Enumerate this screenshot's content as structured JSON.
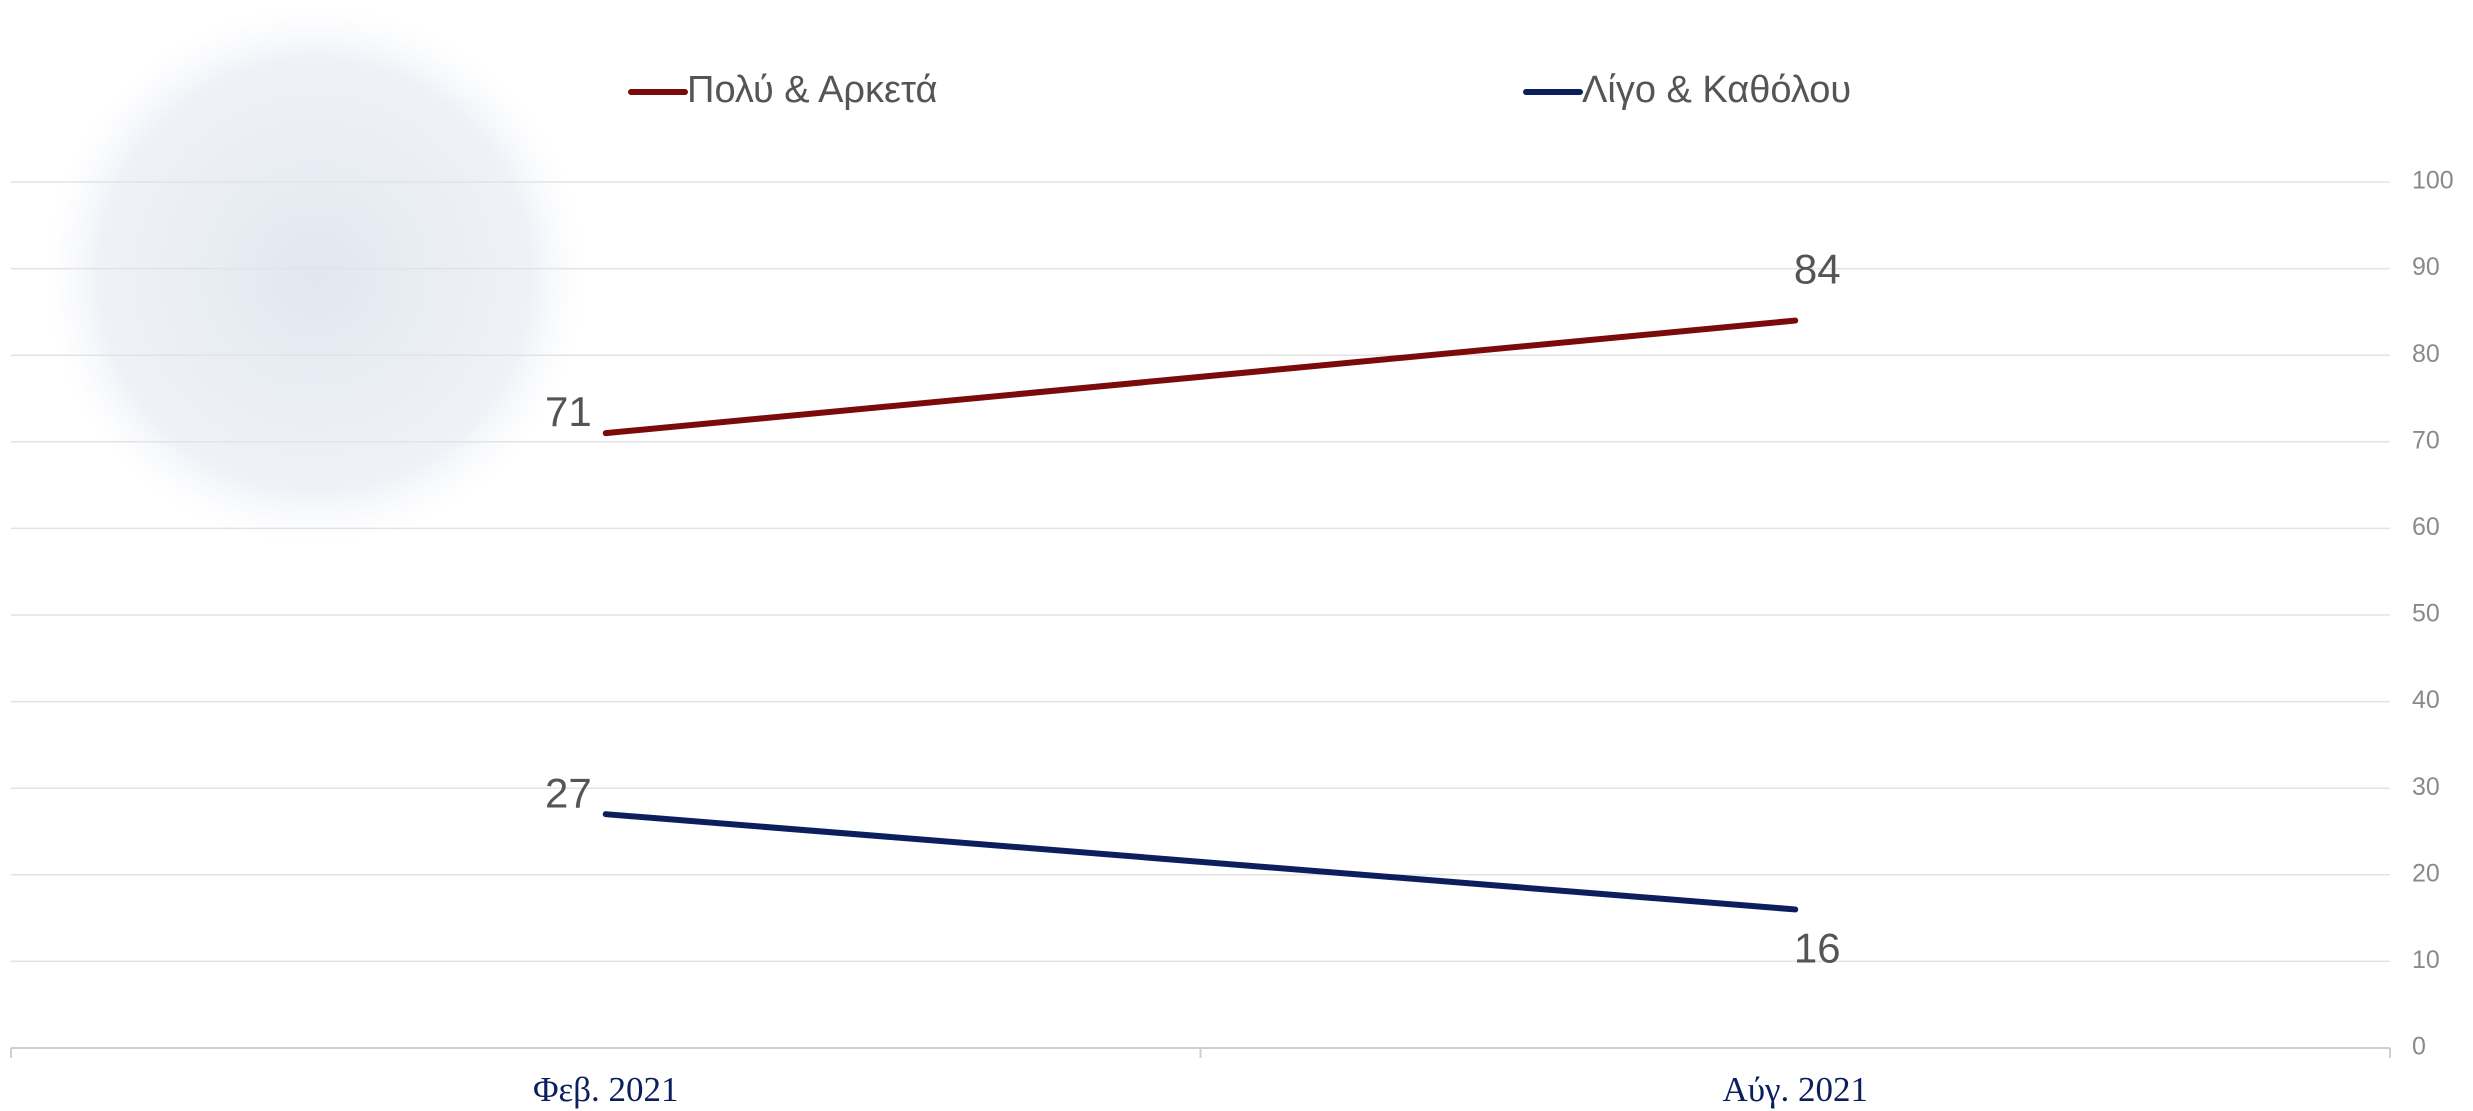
{
  "chart_data": {
    "type": "line",
    "categories": [
      "Φεβ. 2021",
      "Αύγ. 2021"
    ],
    "series": [
      {
        "name": "Πολύ & Αρκετά",
        "color": "#7b0a0a",
        "values": [
          71,
          84
        ]
      },
      {
        "name": "Λίγο & Καθόλου",
        "color": "#0b1f5e",
        "values": [
          27,
          16
        ]
      }
    ],
    "ylim": [
      0,
      100
    ],
    "yticks": [
      0,
      10,
      20,
      30,
      40,
      50,
      60,
      70,
      80,
      90,
      100
    ],
    "grid": true,
    "y_axis_side": "right",
    "legend": "top"
  }
}
